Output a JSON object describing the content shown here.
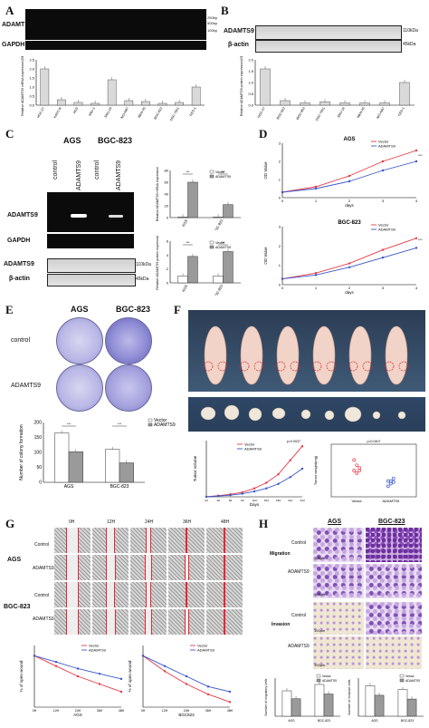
{
  "panels": {
    "A": {
      "letter": "A",
      "gel_label": "ADAMTS9",
      "gapdh_label": "GAPDH",
      "bp_labels": [
        "250bp",
        "500bp",
        "100bp"
      ],
      "lanes": [
        "M",
        "HGC-27",
        "KATO III",
        "AGS",
        "SNU-1",
        "SNU-16",
        "NCI-N87",
        "MKN-45",
        "BGC-823",
        "SGC-7901",
        "GES-1"
      ],
      "ylabel": "Relative ADAMTS9 mRNA expression(GES-1)"
    },
    "B": {
      "letter": "B",
      "lanes": [
        "HGC-27",
        "BGC-823",
        "MGC-803",
        "SGC-7901",
        "SNU-16",
        "MKN-45",
        "NCI-N87",
        "GES-1"
      ],
      "protein_label": "ADAMTS9",
      "actin_label": "β-actin",
      "kda_top": "110kDa",
      "kda_bottom": "45kDa",
      "ylabel": "Relative ADAMTS9 protein expression(GES-1)"
    },
    "C": {
      "letter": "C",
      "groups": [
        "AGS",
        "BGC-823"
      ],
      "lanes": [
        "control",
        "ADAMTS9",
        "control",
        "ADAMTS9"
      ],
      "gel_label": "ADAMTS9",
      "gapdh_label": "GAPDH",
      "wb_label": "ADAMTS9",
      "actin_label": "β-actin",
      "kda_top": "110kDa",
      "kda_bottom": "45kDa",
      "legend": [
        "Vector",
        "ADAMTS9"
      ],
      "ylabel_top": "Relative ADAMTS9 mRNA expression",
      "ylabel_bottom": "Relative ADAMTS9 protein expression",
      "sig": [
        "***",
        "***",
        "***",
        "***"
      ]
    },
    "D": {
      "letter": "D",
      "plot1_title": "AGS",
      "plot2_title": "BGC-823",
      "xlabel": "days",
      "ylabel": "OD Value",
      "legend": [
        "Vector",
        "ADAMTS9"
      ],
      "sig": [
        "***",
        "***"
      ]
    },
    "E": {
      "letter": "E",
      "groups": [
        "AGS",
        "BGC-823"
      ],
      "rows": [
        "control",
        "ADAMTS9"
      ],
      "legend": [
        "Vector",
        "ADAMTS9"
      ],
      "ylabel": "Number of colony formation",
      "sig": [
        "***",
        "***"
      ]
    },
    "F": {
      "letter": "F",
      "xlabel": "Days",
      "ylabel": "Tumor volume",
      "ylabel2": "Tumor weight(mg)",
      "pval1": "p=0.0037",
      "pval2": "p=0.0407",
      "legend": [
        "Vector",
        "ADAMTS9"
      ],
      "x_ticks": [
        "0d",
        "3d",
        "6d",
        "9d",
        "12d",
        "15d",
        "18d",
        "21d",
        "24d"
      ]
    },
    "G": {
      "letter": "G",
      "cols": [
        "0H",
        "12H",
        "24H",
        "36H",
        "48H"
      ],
      "groups": [
        "AGS",
        "BGC-823"
      ],
      "rows": [
        "Control",
        "ADAMTS9",
        "Control",
        "ADAMTS9"
      ],
      "legend": [
        "Vector",
        "ADAMTS9"
      ],
      "plot1_x": "AGS",
      "plot2_x": "BGC823",
      "ylabel": "% of open wound",
      "x_ticks": [
        "0H",
        "12H",
        "24H",
        "36H",
        "48H"
      ]
    },
    "H": {
      "letter": "H",
      "groups": [
        "AGS",
        "BGC-823"
      ],
      "sections": [
        "Migration",
        "Invasion"
      ],
      "rows": [
        "Control",
        "ADAMTS9",
        "Control",
        "ADAMTS9"
      ],
      "legend": [
        "Vector",
        "ADAMTS9"
      ],
      "scale": "100μm",
      "ylabel1": "Number of migratory cells",
      "ylabel2": "Number of invasive cells",
      "xcats": [
        "AGS",
        "BGC-823"
      ]
    }
  },
  "chart_data": [
    {
      "type": "bar",
      "panel": "A",
      "categories": [
        "HGC-27",
        "KATO III",
        "AGS",
        "SNU-1",
        "SNU-16",
        "NCI-N87",
        "MKN-45",
        "BGC-823",
        "SGC-7901",
        "GES-1"
      ],
      "values": [
        2.0,
        0.3,
        0.15,
        0.1,
        1.4,
        0.25,
        0.2,
        0.1,
        0.15,
        1.0
      ],
      "ylim": [
        0,
        2.5
      ],
      "yticks": [
        "0.0",
        "0.5",
        "1.0",
        "1.5",
        "2.0",
        "2.5"
      ]
    },
    {
      "type": "bar",
      "panel": "B",
      "categories": [
        "HGC-27",
        "BGC-823",
        "MGC-803",
        "SGC-7901",
        "SNU-16",
        "MKN-45",
        "NCI-N87",
        "GES-1"
      ],
      "values": [
        1.6,
        0.2,
        0.1,
        0.15,
        0.1,
        0.1,
        0.1,
        1.0
      ],
      "ylim": [
        0,
        2.0
      ],
      "yticks": [
        "0.0",
        "0.5",
        "1.0",
        "1.5",
        "2.0"
      ]
    },
    {
      "type": "bar",
      "panel": "C-mRNA",
      "categories": [
        "AGS",
        "BGC-823"
      ],
      "series": [
        {
          "name": "Vector",
          "values": [
            1,
            1
          ]
        },
        {
          "name": "ADAMTS9",
          "values": [
            60,
            22
          ]
        }
      ],
      "ylim": [
        0,
        80
      ],
      "yticks": [
        "0",
        "20",
        "40",
        "60",
        "80"
      ]
    },
    {
      "type": "bar",
      "panel": "C-protein",
      "categories": [
        "AGS",
        "BGC-823"
      ],
      "series": [
        {
          "name": "Vector",
          "values": [
            1,
            1
          ]
        },
        {
          "name": "ADAMTS9",
          "values": [
            3.8,
            4.5
          ]
        }
      ],
      "ylim": [
        0,
        6
      ],
      "yticks": [
        "0",
        "2",
        "4",
        "6"
      ]
    },
    {
      "type": "line",
      "panel": "D-AGS",
      "x": [
        0,
        1,
        2,
        3,
        4
      ],
      "series": [
        {
          "name": "Vector",
          "values": [
            0.3,
            0.6,
            1.2,
            2.0,
            2.6
          ]
        },
        {
          "name": "ADAMTS9",
          "values": [
            0.3,
            0.5,
            0.9,
            1.5,
            2.0
          ]
        }
      ],
      "ylim": [
        0,
        3
      ],
      "yticks": [
        "0",
        "1",
        "2",
        "3"
      ]
    },
    {
      "type": "line",
      "panel": "D-BGC-823",
      "x": [
        0,
        1,
        2,
        3,
        4
      ],
      "series": [
        {
          "name": "Vector",
          "values": [
            0.3,
            0.6,
            1.1,
            1.8,
            2.4
          ]
        },
        {
          "name": "ADAMTS9",
          "values": [
            0.3,
            0.5,
            0.9,
            1.4,
            1.9
          ]
        }
      ],
      "ylim": [
        0,
        3
      ],
      "yticks": [
        "0",
        "1",
        "2",
        "3"
      ]
    },
    {
      "type": "bar",
      "panel": "E",
      "categories": [
        "AGS",
        "BGC-823"
      ],
      "series": [
        {
          "name": "Vector",
          "values": [
            165,
            110
          ]
        },
        {
          "name": "ADAMTS9",
          "values": [
            102,
            65
          ]
        }
      ],
      "ylim": [
        0,
        200
      ],
      "yticks": [
        "0",
        "50",
        "100",
        "150",
        "200"
      ]
    },
    {
      "type": "line",
      "panel": "F-volume",
      "x": [
        0,
        3,
        6,
        9,
        12,
        15,
        18,
        21,
        24
      ],
      "series": [
        {
          "name": "Vector",
          "values": [
            0,
            20,
            45,
            80,
            150,
            250,
            400,
            650,
            900
          ]
        },
        {
          "name": "ADAMTS9",
          "values": [
            0,
            15,
            30,
            55,
            95,
            150,
            230,
            350,
            500
          ]
        }
      ],
      "ylim": [
        0,
        1000
      ]
    },
    {
      "type": "scatter",
      "panel": "F-weight",
      "categories": [
        "Vector",
        "ADAMTS9"
      ],
      "series": [
        {
          "name": "Vector",
          "values": [
            0.5,
            0.6,
            0.55,
            0.7,
            0.45,
            0.5
          ]
        },
        {
          "name": "ADAMTS9",
          "values": [
            0.3,
            0.25,
            0.35,
            0.2,
            0.3,
            0.28
          ]
        }
      ]
    },
    {
      "type": "line",
      "panel": "G-AGS",
      "x": [
        "0H",
        "12H",
        "24H",
        "36H",
        "48H"
      ],
      "series": [
        {
          "name": "Vector",
          "values": [
            100,
            80,
            60,
            45,
            30
          ]
        },
        {
          "name": "ADAMTS9",
          "values": [
            100,
            88,
            75,
            65,
            55
          ]
        }
      ],
      "ylim": [
        0,
        120
      ]
    },
    {
      "type": "line",
      "panel": "G-BGC823",
      "x": [
        "0H",
        "12H",
        "24H",
        "36H",
        "48H"
      ],
      "series": [
        {
          "name": "Vector",
          "values": [
            100,
            70,
            45,
            25,
            10
          ]
        },
        {
          "name": "ADAMTS9",
          "values": [
            100,
            80,
            60,
            40,
            30
          ]
        }
      ],
      "ylim": [
        0,
        120
      ]
    },
    {
      "type": "bar",
      "panel": "H-migration",
      "categories": [
        "AGS",
        "BGC-823"
      ],
      "series": [
        {
          "name": "Vector",
          "values": [
            80,
            100
          ]
        },
        {
          "name": "ADAMTS9",
          "values": [
            55,
            70
          ]
        }
      ],
      "ylim": [
        0,
        120
      ]
    },
    {
      "type": "bar",
      "panel": "H-invasion",
      "categories": [
        "AGS",
        "BGC-823"
      ],
      "series": [
        {
          "name": "Vector",
          "values": [
            160,
            140
          ]
        },
        {
          "name": "ADAMTS9",
          "values": [
            110,
            90
          ]
        }
      ],
      "ylim": [
        0,
        200
      ]
    }
  ],
  "colors": {
    "vector": "#e63946",
    "adamts9": "#3a56c8",
    "bar_light": "#ffffff",
    "bar_dark": "#9a9a9a"
  }
}
